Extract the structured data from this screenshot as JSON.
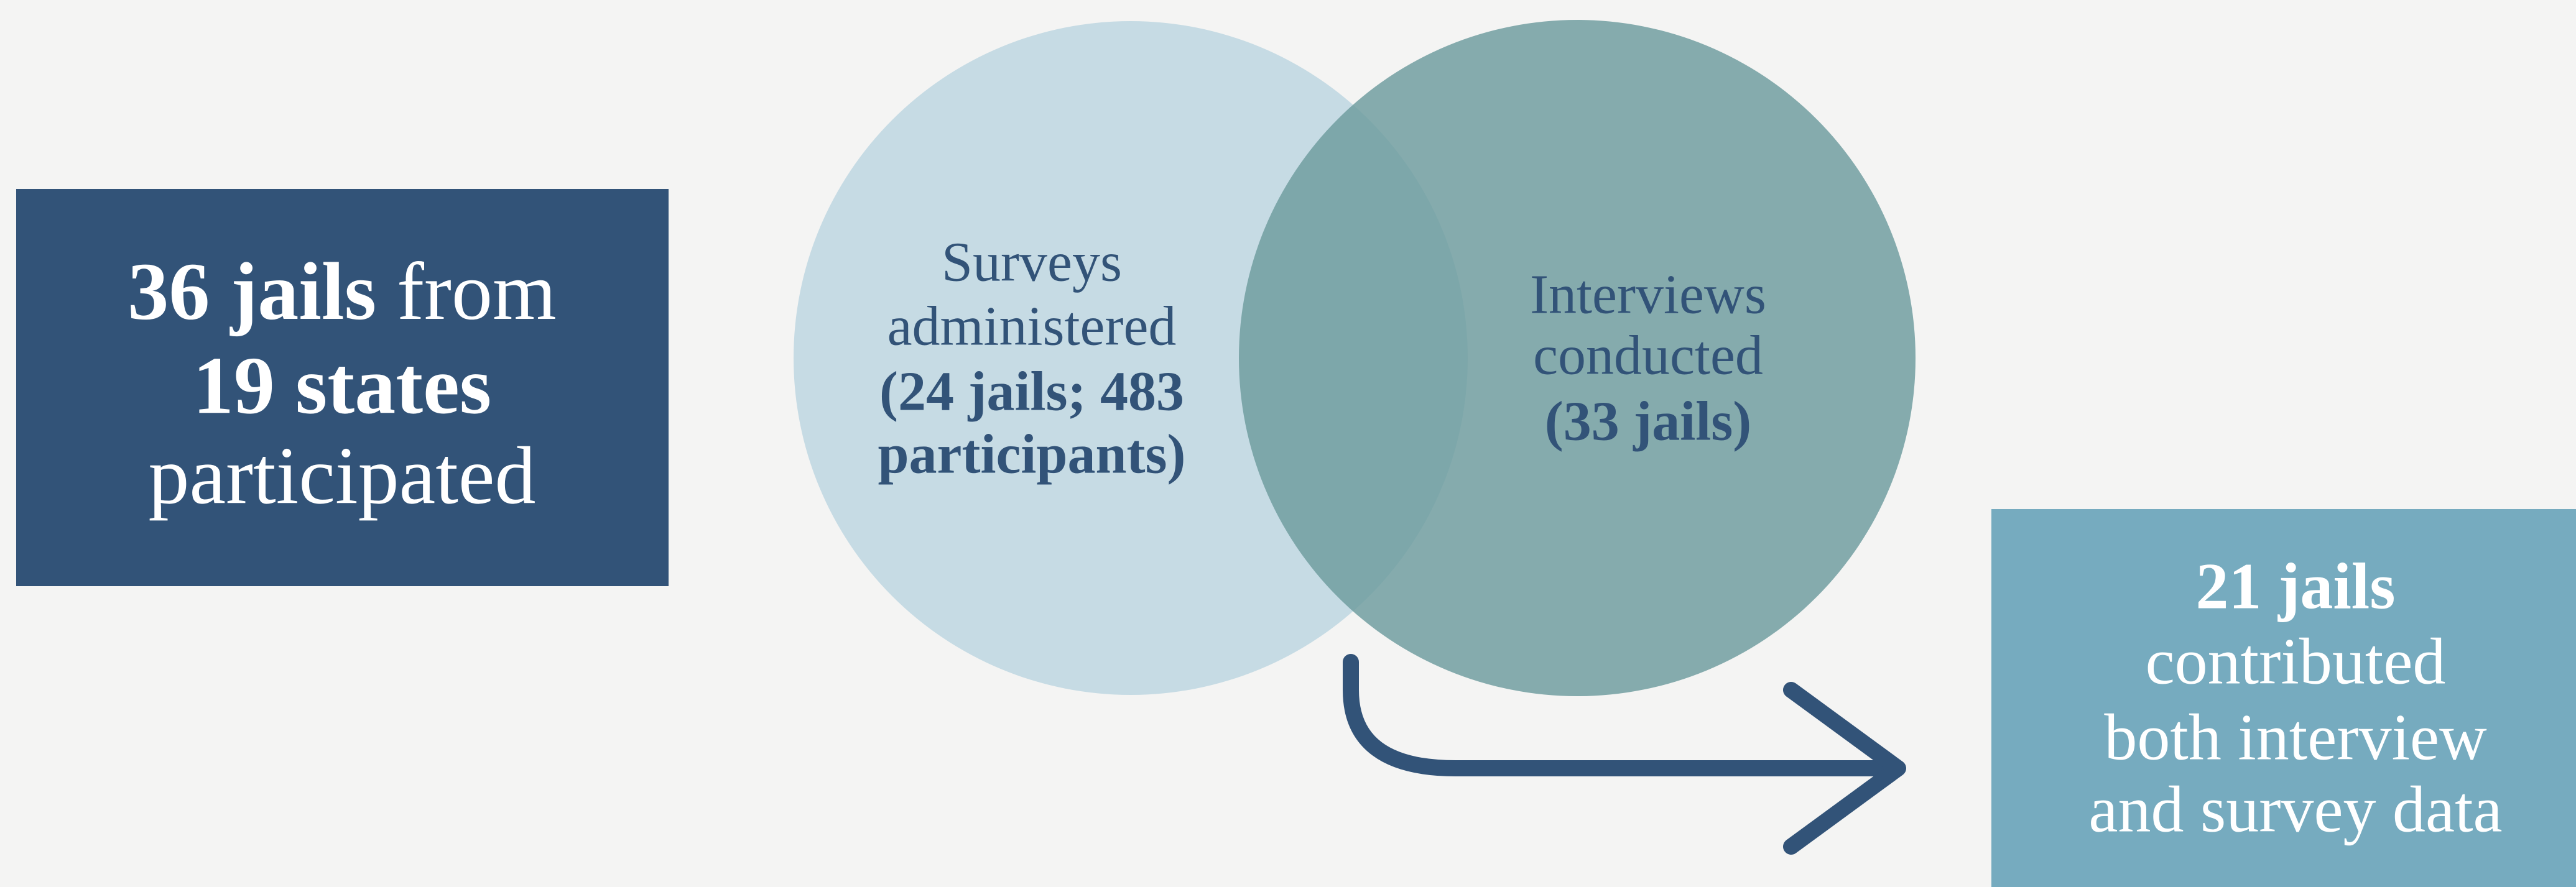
{
  "left_box": {
    "line1_bold": "36 jails",
    "line1_rest": "from",
    "line2_bold": "19 states",
    "line3": "participated"
  },
  "surveys": {
    "line1": "Surveys",
    "line2": "administered",
    "line3": "(24 jails; 483",
    "line4": "participants)"
  },
  "interviews": {
    "line1": "Interviews",
    "line2": "conducted",
    "line3": "(33 jails)"
  },
  "right_box": {
    "line1": "21 jails",
    "line2": "contributed",
    "line3": "both interview",
    "line4": "and survey data"
  }
}
